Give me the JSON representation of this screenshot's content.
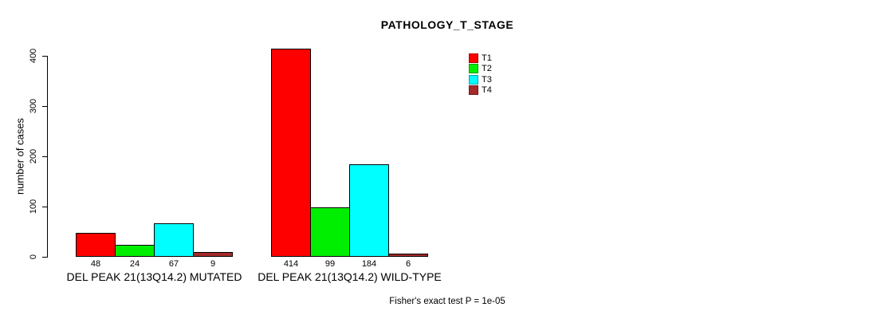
{
  "chart_data": {
    "type": "bar",
    "title": "PATHOLOGY_T_STAGE",
    "ylabel": "number of cases",
    "ylim": [
      0,
      400
    ],
    "yticks": [
      0,
      100,
      200,
      300,
      400
    ],
    "grid": false,
    "categories": [
      "DEL PEAK 21(13Q14.2) MUTATED",
      "DEL PEAK 21(13Q14.2) WILD-TYPE"
    ],
    "series": [
      {
        "name": "T1",
        "color": "#ff0000",
        "values": [
          48,
          414
        ]
      },
      {
        "name": "T2",
        "color": "#00ee00",
        "values": [
          24,
          99
        ]
      },
      {
        "name": "T3",
        "color": "#00ffff",
        "values": [
          67,
          184
        ]
      },
      {
        "name": "T4",
        "color": "#a52a2a",
        "values": [
          9,
          6
        ]
      }
    ],
    "bar_border_color": "#000000",
    "legend_position": "top-right",
    "annotation": "Fisher's exact test P = 1e-05"
  }
}
